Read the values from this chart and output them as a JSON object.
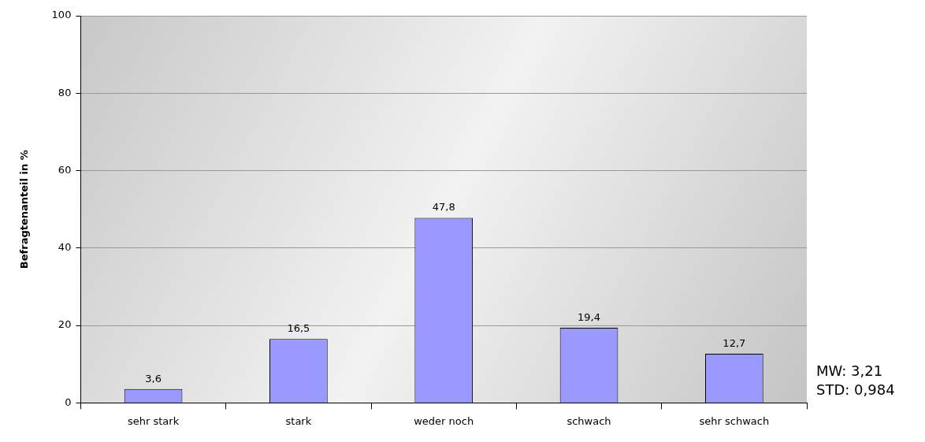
{
  "chart_data": {
    "type": "bar",
    "ylabel": "Befragtenanteil in %",
    "categories": [
      "sehr stark",
      "stark",
      "weder noch",
      "schwach",
      "sehr schwach"
    ],
    "values": [
      3.6,
      16.5,
      47.8,
      19.4,
      12.7
    ],
    "value_labels": [
      "3,6",
      "16,5",
      "47,8",
      "19,4",
      "12,7"
    ],
    "color": "#9999ff",
    "ylim": [
      0,
      100
    ],
    "yticks": [
      0,
      20,
      40,
      60,
      80,
      100
    ],
    "grid": "y",
    "legend": false,
    "annotations": [
      "MW: 3,21",
      "STD: 0,984"
    ]
  }
}
